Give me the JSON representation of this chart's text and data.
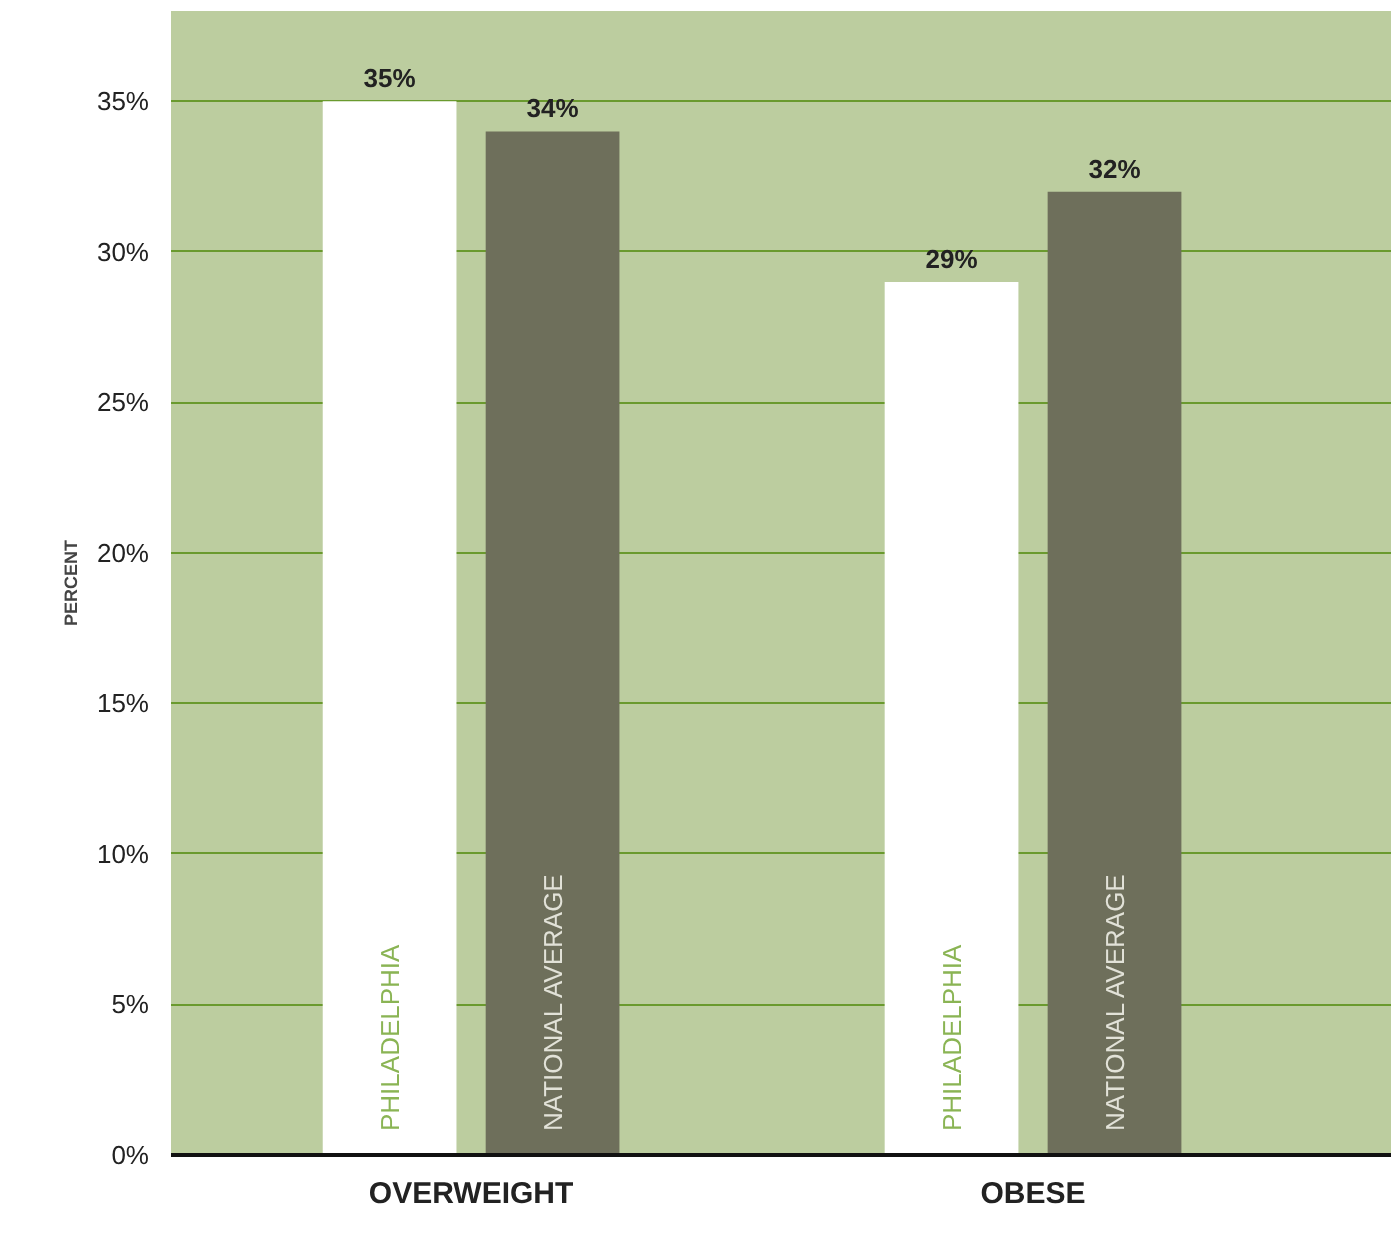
{
  "chart_data": {
    "type": "bar",
    "ylabel": "PERCENT",
    "categories": [
      "OVERWEIGHT",
      "OBESE"
    ],
    "series": [
      {
        "name": "PHILADELPHIA",
        "color": "#ffffff",
        "values": [
          35,
          29
        ],
        "value_labels": [
          "35%",
          "29%"
        ]
      },
      {
        "name": "NATIONAL AVERAGE",
        "color": "#6e6f5b",
        "values": [
          34,
          32
        ],
        "value_labels": [
          "34%",
          "32%"
        ]
      }
    ],
    "ylim": [
      0,
      38
    ],
    "yticks": [
      {
        "value": 0,
        "label": "0%"
      },
      {
        "value": 5,
        "label": "5%"
      },
      {
        "value": 10,
        "label": "10%"
      },
      {
        "value": 15,
        "label": "15%"
      },
      {
        "value": 20,
        "label": "20%"
      },
      {
        "value": 25,
        "label": "25%"
      },
      {
        "value": 30,
        "label": "30%"
      },
      {
        "value": 35,
        "label": "35%"
      }
    ],
    "grid": "y",
    "legend": false
  }
}
